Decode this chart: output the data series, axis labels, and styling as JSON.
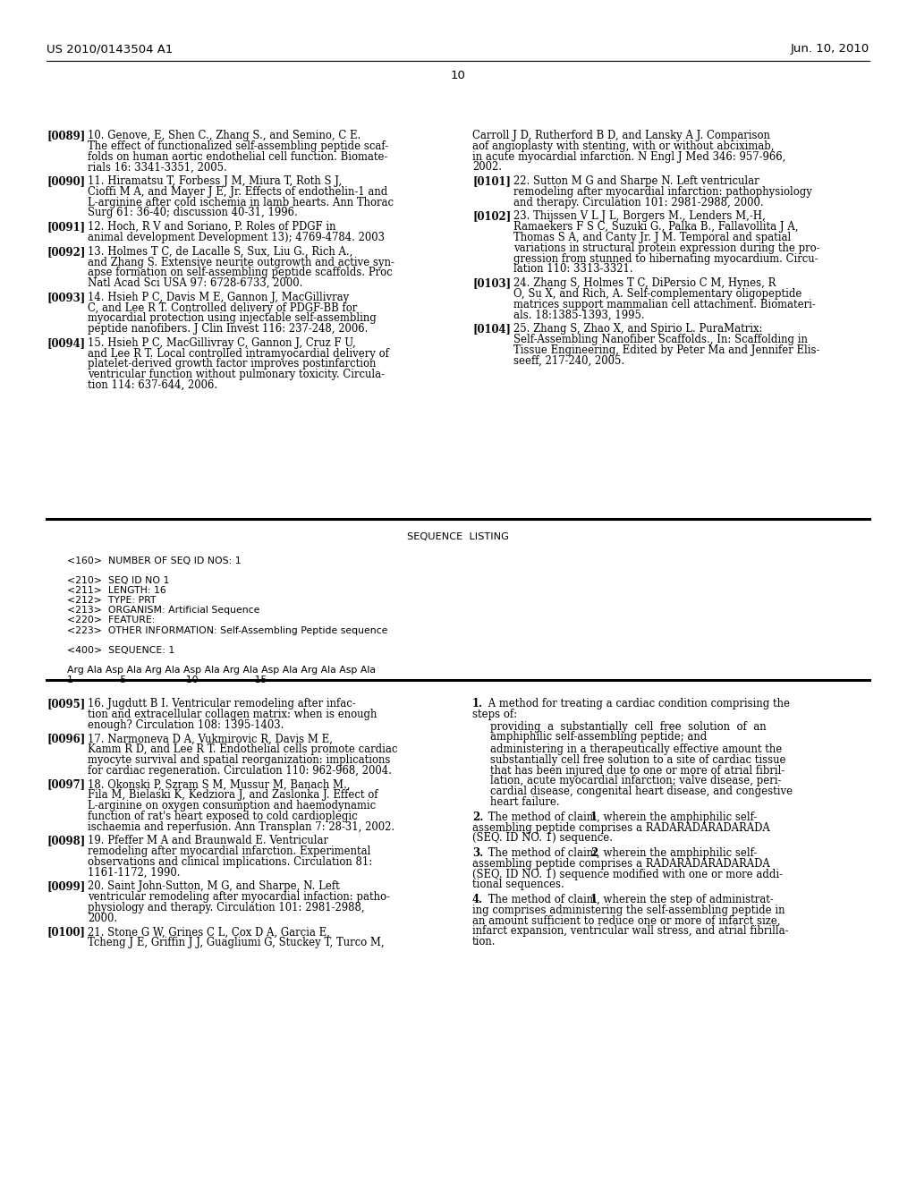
{
  "bg_color": "#ffffff",
  "header_left": "US 2010/0143504 A1",
  "header_right": "Jun. 10, 2010",
  "page_number": "10",
  "seq_title": "SEQUENCE  LISTING",
  "seq_lines": [
    "<160>  NUMBER OF SEQ ID NOS: 1",
    "",
    "<210>  SEQ ID NO 1",
    "<211>  LENGTH: 16",
    "<212>  TYPE: PRT",
    "<213>  ORGANISM: Artificial Sequence",
    "<220>  FEATURE:",
    "<223>  OTHER INFORMATION: Self-Assembling Peptide sequence",
    "",
    "<400>  SEQUENCE: 1",
    "",
    "Arg Ala Asp Ala Arg Ala Asp Ala Arg Ala Asp Ala Arg Ala Asp Ala",
    "1               5                   10                  15"
  ]
}
